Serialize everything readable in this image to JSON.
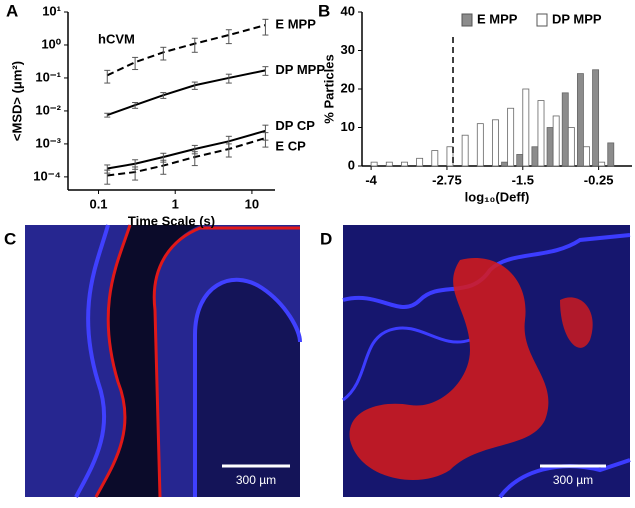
{
  "panel_labels": [
    "A",
    "B",
    "C",
    "D"
  ],
  "images": [
    {
      "scale_bar": "300 µm"
    },
    {
      "scale_bar": "300 µm"
    }
  ],
  "chart_data": [
    {
      "type": "line",
      "xscale": "log",
      "yscale": "log",
      "annotation": "hCVM",
      "xlabel": "Time Scale (s)",
      "ylabel": "<MSD> (μm²)",
      "x": [
        0.13,
        0.3,
        0.7,
        1.8,
        5,
        15
      ],
      "xlim": [
        0.04,
        20
      ],
      "xticks": [
        0.1,
        1,
        10
      ],
      "ylim": [
        4e-05,
        10
      ],
      "yticks": [
        {
          "value": 0.0001,
          "label": "10⁻⁴"
        },
        {
          "value": 0.001,
          "label": "10⁻³"
        },
        {
          "value": 0.01,
          "label": "10⁻²"
        },
        {
          "value": 0.1,
          "label": "10⁻¹"
        },
        {
          "value": 1,
          "label": "10⁰"
        },
        {
          "value": 10,
          "label": "10¹"
        }
      ],
      "series": [
        {
          "name": "E MPP",
          "color": "#000000",
          "dash": true,
          "values": [
            0.12,
            0.3,
            0.6,
            1.1,
            2,
            4
          ],
          "errors": [
            0.05,
            0.12,
            0.25,
            0.5,
            0.9,
            2
          ]
        },
        {
          "name": "DP MPP",
          "color": "#000000",
          "dash": false,
          "values": [
            0.0075,
            0.015,
            0.03,
            0.06,
            0.1,
            0.17
          ],
          "errors": [
            0.001,
            0.003,
            0.006,
            0.015,
            0.03,
            0.05
          ]
        },
        {
          "name": "DP CP",
          "color": "#000000",
          "dash": false,
          "values": [
            0.00018,
            0.00025,
            0.0004,
            0.0007,
            0.0012,
            0.0025
          ],
          "errors": [
            5e-05,
            8e-05,
            0.00012,
            0.0002,
            0.0005,
            0.0012
          ]
        },
        {
          "name": "E CP",
          "color": "#000000",
          "dash": true,
          "values": [
            0.00011,
            0.00014,
            0.00022,
            0.0004,
            0.0007,
            0.0015
          ],
          "errors": [
            5e-05,
            6e-05,
            0.0001,
            0.00018,
            0.0003,
            0.0007
          ]
        }
      ]
    },
    {
      "type": "histogram",
      "xlabel": "log₁₀(Deff)",
      "ylabel": "% Particles",
      "bins": [
        -4.125,
        -3.875,
        -3.625,
        -3.375,
        -3.125,
        -2.875,
        -2.625,
        -2.375,
        -2.125,
        -1.875,
        -1.625,
        -1.375,
        -1.125,
        -0.875,
        -0.625,
        -0.375,
        -0.125,
        0.125
      ],
      "xlim": [
        -4.15,
        0.3
      ],
      "xticks": [
        -4,
        -2.75,
        -1.5,
        -0.25
      ],
      "ylim": [
        0,
        40
      ],
      "yticks": [
        0,
        10,
        20,
        30,
        40
      ],
      "threshold": -2.65,
      "series": [
        {
          "name": "E MPP",
          "color": "#8c8c8c",
          "values": [
            0,
            0,
            0,
            0,
            0,
            0,
            0,
            0,
            0,
            1,
            3,
            5,
            10,
            19,
            24,
            25,
            6
          ]
        },
        {
          "name": "DP MPP",
          "color": "#ffffff",
          "values": [
            1,
            1,
            1,
            2,
            4,
            5,
            8,
            11,
            12,
            15,
            20,
            17,
            13,
            10,
            5,
            1,
            0
          ]
        }
      ]
    }
  ]
}
